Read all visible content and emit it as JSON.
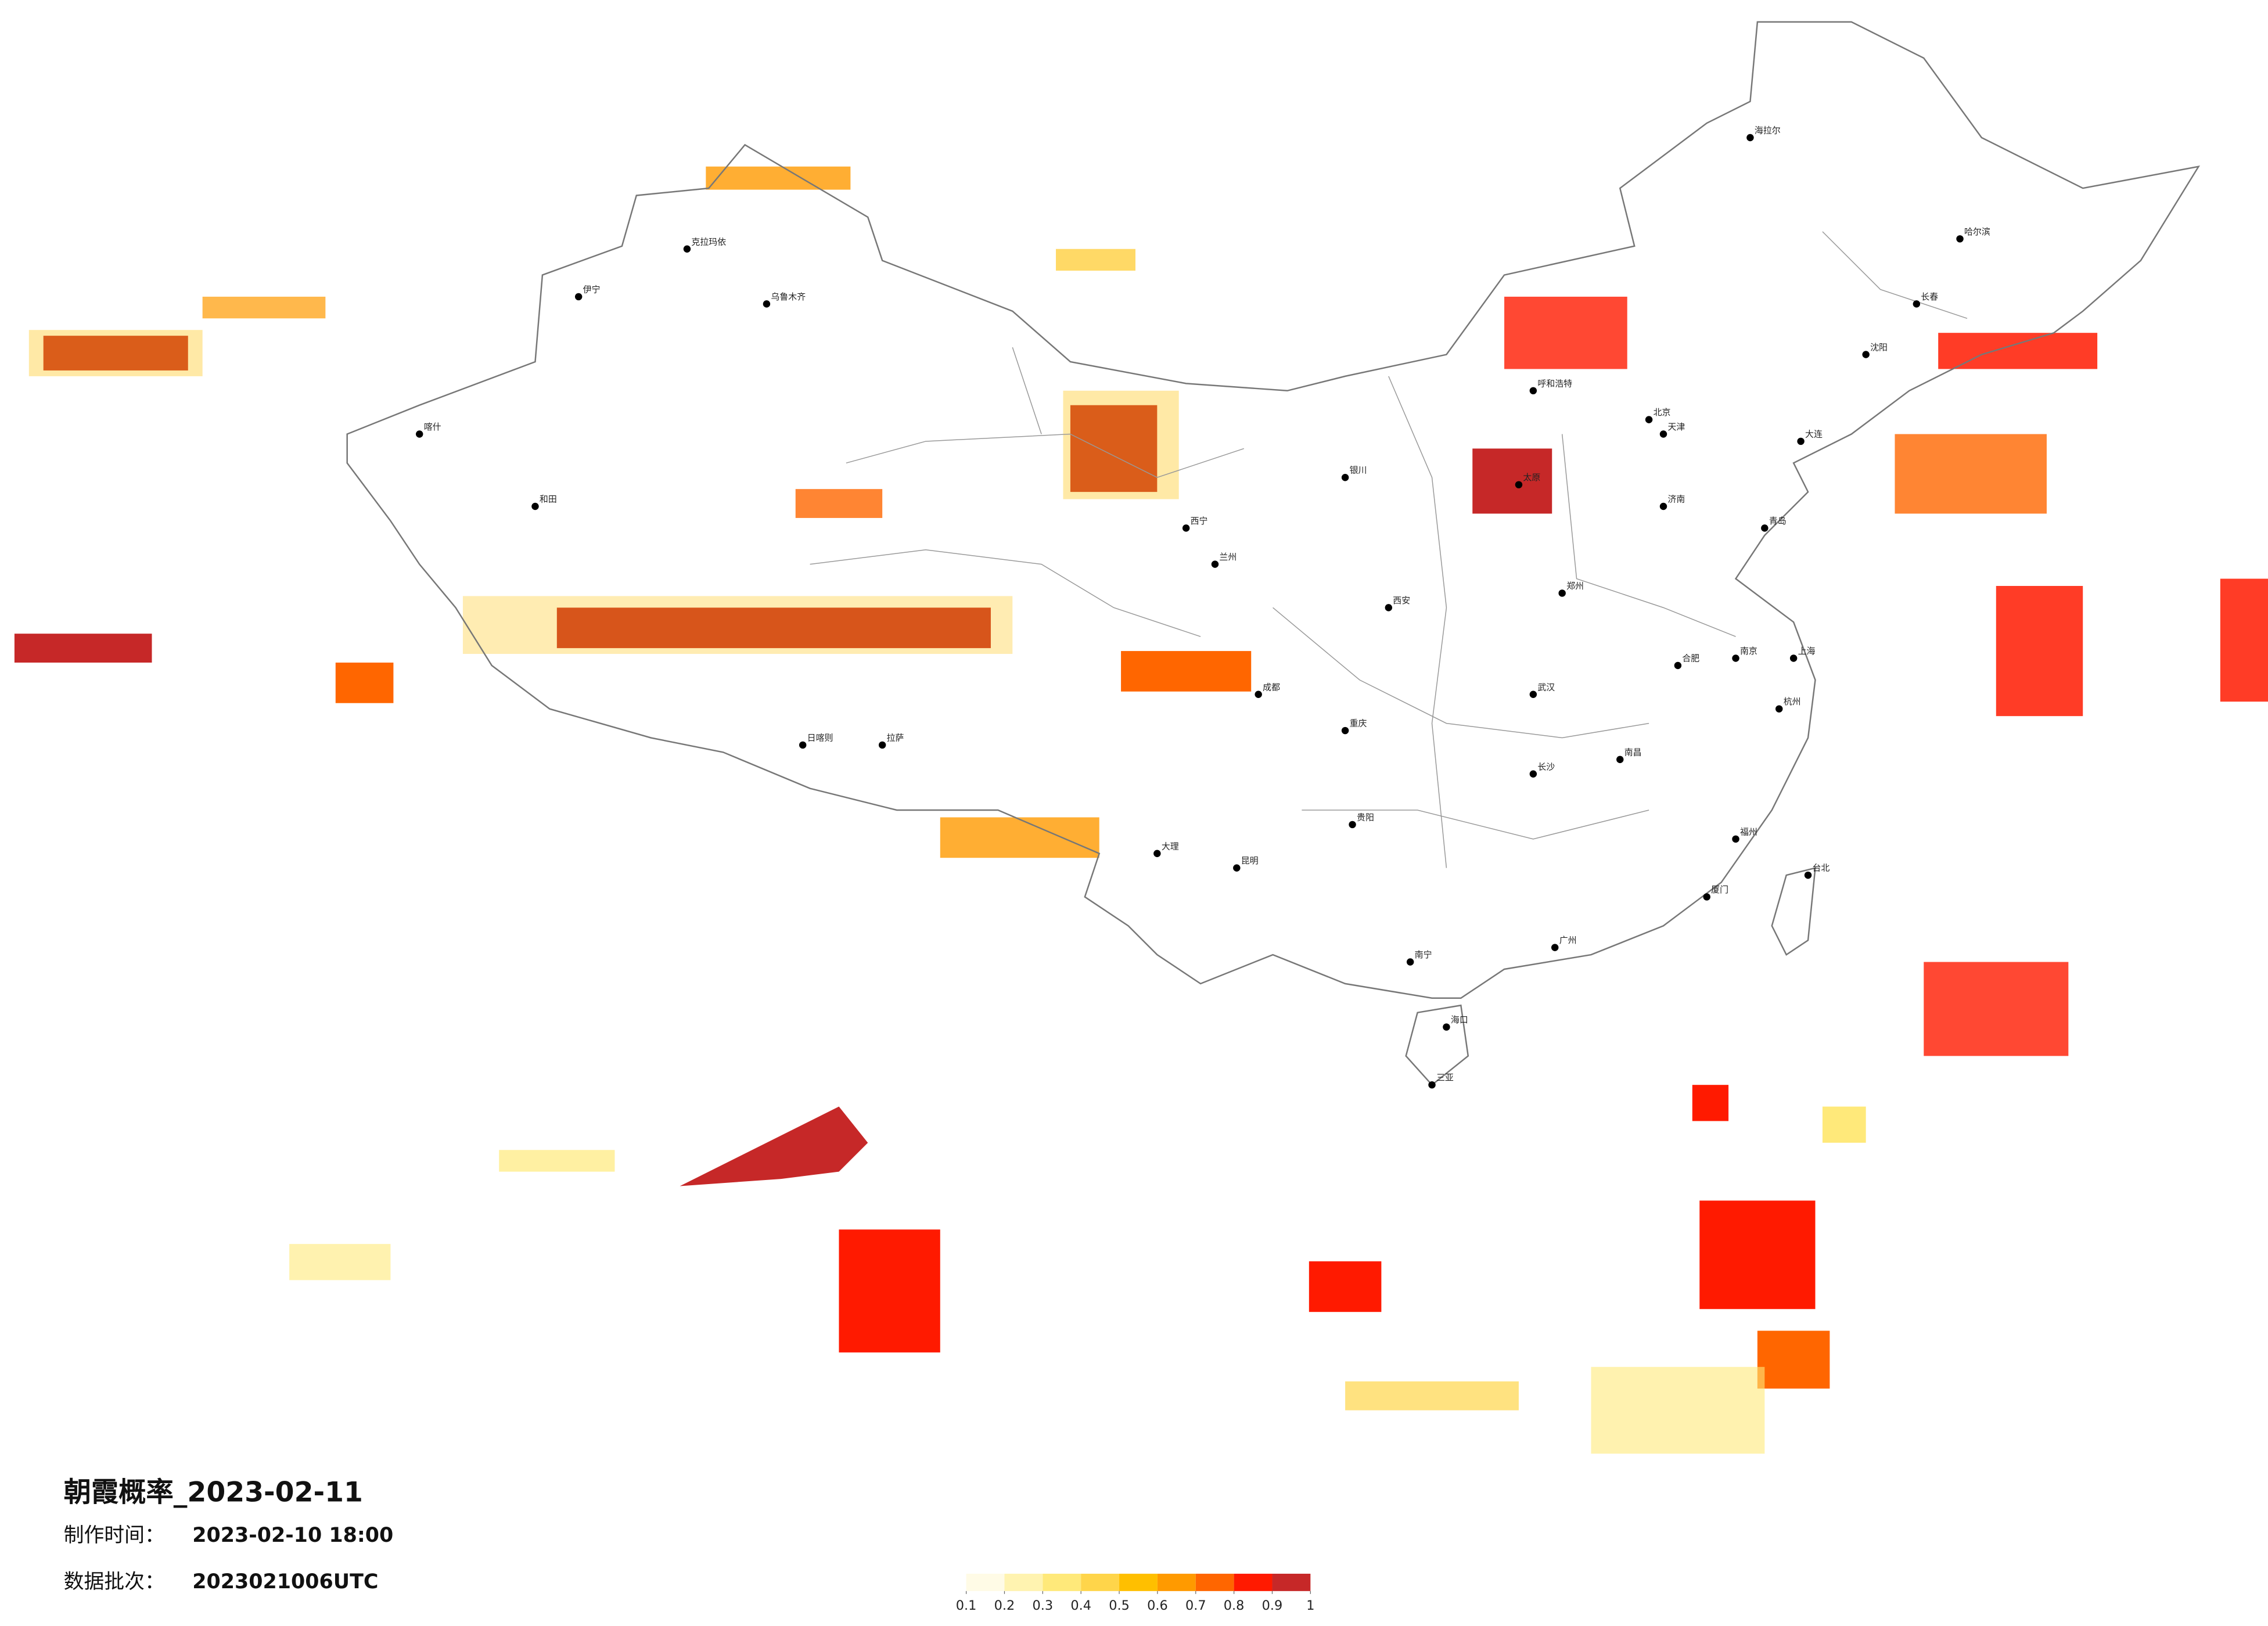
{
  "header": {
    "title": "朝霞概率_2023-02-11",
    "made_label": "制作时间：",
    "made_value": "2023-02-10 18:00",
    "batch_label": "数据批次：",
    "batch_value": "2023021006UTC"
  },
  "legend": {
    "ticks": [
      0.1,
      0.2,
      0.3,
      0.4,
      0.5,
      0.6,
      0.7,
      0.8,
      0.9,
      1
    ],
    "colors": [
      "#fffbe6",
      "#fff3b0",
      "#ffe97a",
      "#ffd54a",
      "#ffbf00",
      "#ff9a00",
      "#ff6600",
      "#ff1a00",
      "#c62828"
    ]
  },
  "cities": [
    "北京",
    "上海",
    "广州",
    "成都",
    "重庆",
    "武汉",
    "西安",
    "兰州",
    "乌鲁木齐",
    "拉萨",
    "哈尔滨",
    "长春",
    "沈阳",
    "呼和浩特",
    "太原",
    "郑州",
    "济南",
    "南京",
    "杭州",
    "福州",
    "南宁",
    "昆明",
    "贵阳",
    "长沙",
    "南昌",
    "合肥",
    "海口",
    "台北",
    "银川",
    "西宁",
    "喀什",
    "和田",
    "伊宁",
    "克拉玛依",
    "海拉尔",
    "日喀则",
    "大理",
    "三亚",
    "天津",
    "大连",
    "青岛",
    "厦门"
  ]
}
